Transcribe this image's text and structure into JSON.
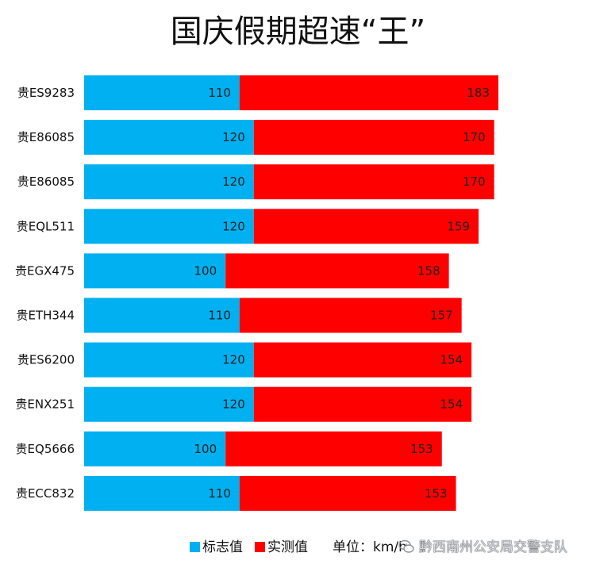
{
  "chart_data": {
    "type": "bar",
    "orientation": "horizontal",
    "stacked": true,
    "title": "国庆假期超速“王”",
    "categories": [
      "贵ES9283",
      "贵E86085",
      "贵E86085",
      "贵EQL511",
      "贵EGX475",
      "贵ETH344",
      "贵ES6200",
      "贵ENX251",
      "贵EQ5666",
      "贵ECC832"
    ],
    "series": [
      {
        "name": "标志值",
        "color": "#00b0f0",
        "values": [
          110,
          120,
          120,
          120,
          100,
          110,
          120,
          120,
          100,
          110
        ]
      },
      {
        "name": "实测值",
        "color": "#ff0000",
        "values": [
          183,
          170,
          170,
          159,
          158,
          157,
          154,
          154,
          153,
          153
        ]
      }
    ],
    "xlim": [
      0,
      293
    ],
    "grid": false,
    "legend_position": "bottom"
  },
  "unit_label": "单位：km/h",
  "watermark": "黔西南州公安局交警支队",
  "watermark_icon": "wechat-icon"
}
